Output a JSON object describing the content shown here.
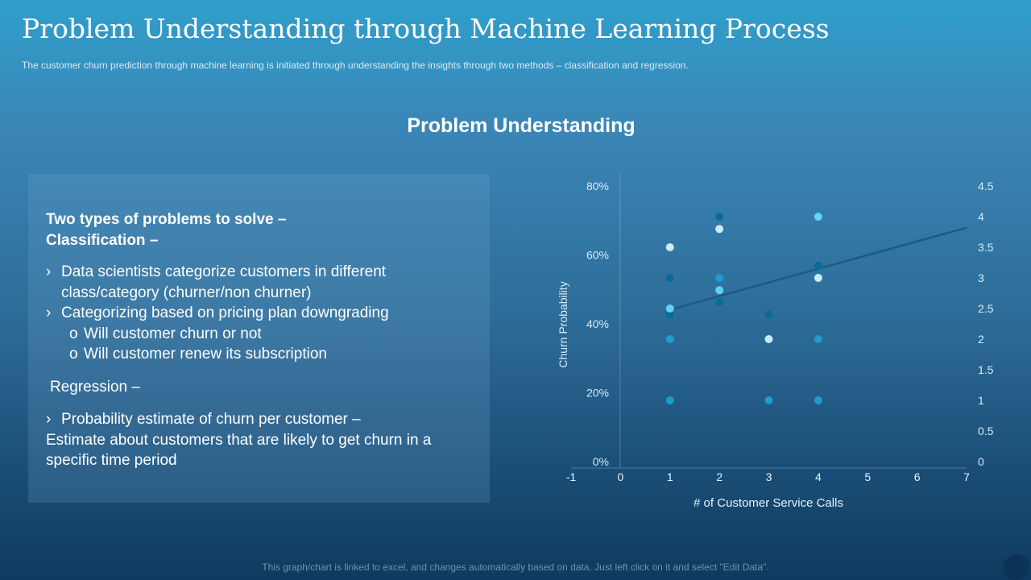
{
  "header": {
    "title": "Problem Understanding through Machine Learning Process",
    "subtitle": "The customer churn prediction through machine learning is initiated through understanding  the insights through  two methods – classification and regression."
  },
  "section_heading": "Problem Understanding",
  "panel": {
    "classification_heading_1": "Two types of problems to solve –",
    "classification_heading_2": "Classification  –",
    "bullet_marker": "›",
    "sub_marker": "o",
    "bullets": [
      "Data scientists categorize customers in different class/category (churner/non  churner)",
      "Categorizing based on pricing plan downgrading"
    ],
    "sub_bullets": [
      "Will customer  churn  or not",
      "Will customer  renew its subscription"
    ],
    "regression_heading": "Regression –",
    "regression_bullet_1": "Probability estimate of churn per customer –",
    "regression_bullet_2": "Estimate about customers that are likely to get churn in a specific time period"
  },
  "chart_data": {
    "type": "scatter",
    "title": "",
    "xlabel": "# of Customer Service Calls",
    "ylabel": "Churn Probability",
    "y2label": "",
    "xlim": [
      -1,
      7
    ],
    "ylim": [
      0,
      0.8
    ],
    "y2lim": [
      0,
      4.5
    ],
    "x_ticks": [
      -1,
      0,
      1,
      2,
      3,
      4,
      5,
      6,
      7
    ],
    "y_ticks": [
      "0%",
      "20%",
      "40%",
      "60%",
      "80%"
    ],
    "y2_ticks": [
      "0",
      "0.5",
      "1",
      "1.5",
      "2",
      "2.5",
      "3",
      "3.5",
      "4",
      "4.5"
    ],
    "grid": false,
    "legend": "none",
    "series": [
      {
        "axis": "secondary",
        "color": "#0a6a98",
        "points": [
          {
            "x": 1,
            "y": 3
          },
          {
            "x": 1,
            "y": 2.4
          },
          {
            "x": 2,
            "y": 4
          },
          {
            "x": 2,
            "y": 2.6
          },
          {
            "x": 3,
            "y": 2.4
          },
          {
            "x": 4,
            "y": 3.2
          }
        ]
      },
      {
        "axis": "secondary",
        "color": "#1f9bd0",
        "points": [
          {
            "x": 1,
            "y": 2
          },
          {
            "x": 1,
            "y": 1
          },
          {
            "x": 2,
            "y": 3
          },
          {
            "x": 3,
            "y": 1
          },
          {
            "x": 4,
            "y": 2
          },
          {
            "x": 4,
            "y": 1
          }
        ]
      },
      {
        "axis": "secondary",
        "color": "#5fd3f5",
        "points": [
          {
            "x": 1,
            "y": 2.5
          },
          {
            "x": 2,
            "y": 2.8
          },
          {
            "x": 4,
            "y": 4
          }
        ]
      },
      {
        "axis": "secondary",
        "color": "#c8ecf8",
        "points": [
          {
            "x": 1,
            "y": 3.5
          },
          {
            "x": 2,
            "y": 3.8
          },
          {
            "x": 3,
            "y": 2
          },
          {
            "x": 4,
            "y": 3
          }
        ]
      }
    ],
    "trendline": {
      "axis": "secondary",
      "color": "#1c5a86",
      "points": [
        {
          "x": 1,
          "y": 2.48
        },
        {
          "x": 7,
          "y": 3.82
        }
      ]
    }
  },
  "footnote": "This graph/chart is linked to excel, and changes automatically based on data.  Just left click on it and select \"Edit Data\"."
}
